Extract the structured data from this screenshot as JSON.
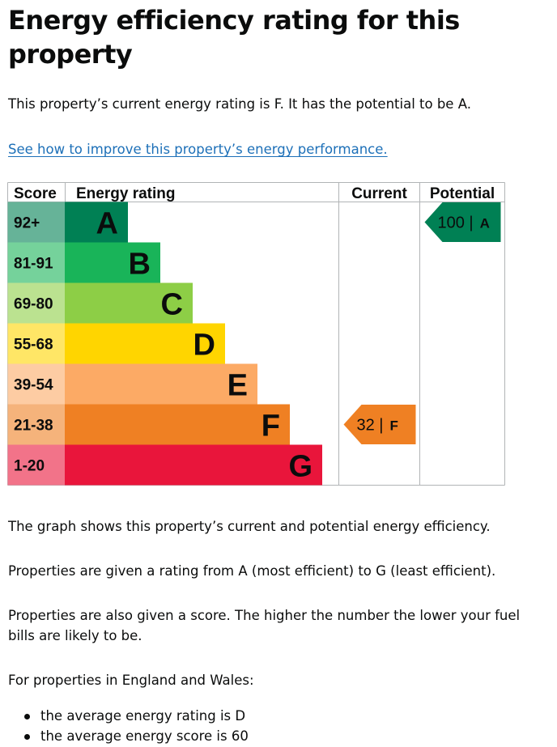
{
  "page": {
    "title": "Energy efficiency rating for this property",
    "intro": "This property’s current energy rating is F. It has the potential to be A.",
    "improve_link": "See how to improve this property’s energy performance.",
    "graph_caption": "The graph shows this property’s current and potential energy efficiency.",
    "rating_range_text": "Properties are given a rating from A (most efficient) to G (least efficient).",
    "score_text": "Properties are also given a score. The higher the number the lower your fuel bills are likely to be.",
    "region_text": "For properties in England and Wales:",
    "averages": [
      "the average energy rating is D",
      "the average energy score is 60"
    ]
  },
  "chart_data": {
    "type": "bar",
    "headers": {
      "score": "Score",
      "rating": "Energy rating",
      "current": "Current",
      "potential": "Potential"
    },
    "bands": [
      {
        "letter": "A",
        "score_range": "92+",
        "color": "#008054",
        "score_bg": "#66b398"
      },
      {
        "letter": "B",
        "score_range": "81-91",
        "color": "#19b459",
        "score_bg": "#75d29b"
      },
      {
        "letter": "C",
        "score_range": "69-80",
        "color": "#8dce46",
        "score_bg": "#bbe290"
      },
      {
        "letter": "D",
        "score_range": "55-68",
        "color": "#ffd500",
        "score_bg": "#ffe666"
      },
      {
        "letter": "E",
        "score_range": "39-54",
        "color": "#fcaa65",
        "score_bg": "#fdcca3"
      },
      {
        "letter": "F",
        "score_range": "21-38",
        "color": "#ef8023",
        "score_bg": "#f5b37b"
      },
      {
        "letter": "G",
        "score_range": "1-20",
        "color": "#e9153b",
        "score_bg": "#f27389"
      }
    ],
    "current": {
      "score": 32,
      "score_label": "32 |",
      "band": "F"
    },
    "potential": {
      "score": 100,
      "score_label": "100 |",
      "band": "A"
    }
  }
}
